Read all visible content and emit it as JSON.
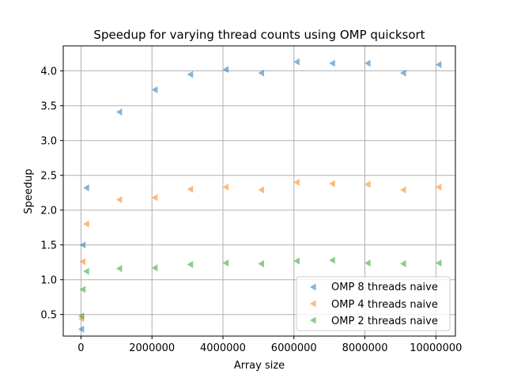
{
  "chart_data": {
    "type": "scatter",
    "title": "Speedup for varying thread counts using OMP quicksort",
    "xlabel": "Array size",
    "ylabel": "Speedup",
    "xlim": [
      -500000,
      10550000
    ],
    "ylim": [
      0.19,
      4.36
    ],
    "xticks": [
      0,
      2000000,
      4000000,
      6000000,
      8000000,
      10000000
    ],
    "xtick_labels": [
      "0",
      "2000000",
      "4000000",
      "6000000",
      "8000000",
      "10000000"
    ],
    "yticks": [
      0.5,
      1.0,
      1.5,
      2.0,
      2.5,
      3.0,
      3.5,
      4.0
    ],
    "ytick_labels": [
      "0.5",
      "1.0",
      "1.5",
      "2.0",
      "2.5",
      "3.0",
      "3.5",
      "4.0"
    ],
    "grid": true,
    "marker": "triangle-left",
    "legend_position": "lower-right",
    "series": [
      {
        "name": "OMP 8 threads naive",
        "color": "#1f77b4",
        "points": [
          [
            10000,
            0.29
          ],
          [
            50000,
            1.5
          ],
          [
            150000,
            2.32
          ],
          [
            1080000,
            3.41
          ],
          [
            2080000,
            3.73
          ],
          [
            3080000,
            3.95
          ],
          [
            4080000,
            4.02
          ],
          [
            5080000,
            3.97
          ],
          [
            6080000,
            4.13
          ],
          [
            7080000,
            4.11
          ],
          [
            8080000,
            4.11
          ],
          [
            9080000,
            3.97
          ],
          [
            10080000,
            4.09
          ]
        ]
      },
      {
        "name": "OMP 4 threads naive",
        "color": "#ff7f0e",
        "points": [
          [
            10000,
            0.44
          ],
          [
            50000,
            1.26
          ],
          [
            150000,
            1.8
          ],
          [
            1080000,
            2.15
          ],
          [
            2080000,
            2.18
          ],
          [
            3080000,
            2.3
          ],
          [
            4080000,
            2.33
          ],
          [
            5080000,
            2.29
          ],
          [
            6080000,
            2.4
          ],
          [
            7080000,
            2.38
          ],
          [
            8080000,
            2.37
          ],
          [
            9080000,
            2.29
          ],
          [
            10080000,
            2.33
          ]
        ]
      },
      {
        "name": "OMP 2 threads naive",
        "color": "#2ca02c",
        "points": [
          [
            10000,
            0.48
          ],
          [
            50000,
            0.86
          ],
          [
            150000,
            1.12
          ],
          [
            1080000,
            1.16
          ],
          [
            2080000,
            1.17
          ],
          [
            3080000,
            1.22
          ],
          [
            4080000,
            1.24
          ],
          [
            5080000,
            1.23
          ],
          [
            6080000,
            1.27
          ],
          [
            7080000,
            1.28
          ],
          [
            8080000,
            1.24
          ],
          [
            9080000,
            1.23
          ],
          [
            10080000,
            1.24
          ]
        ]
      }
    ]
  }
}
